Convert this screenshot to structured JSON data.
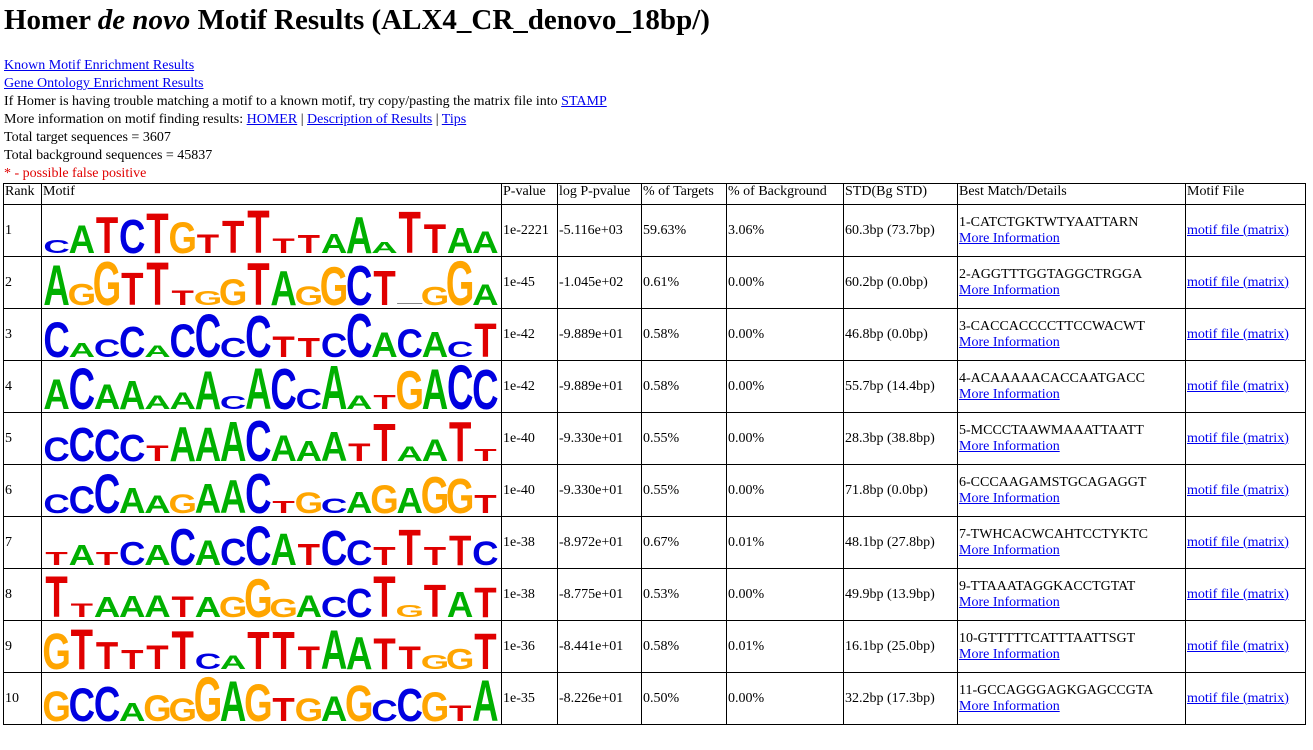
{
  "title_prefix": "Homer ",
  "title_italic": "de novo",
  "title_suffix": " Motif Results (ALX4_CR_denovo_18bp/)",
  "links": {
    "known": "Known Motif Enrichment Results",
    "go": "Gene Ontology Enrichment Results"
  },
  "stamp_text": "If Homer is having trouble matching a motif to a known motif, try copy/pasting the matrix file into ",
  "stamp_link": "STAMP",
  "more_info_text": "More information on motif finding results: ",
  "more_info_links": {
    "homer": "HOMER",
    "desc": "Description of Results",
    "tips": "Tips"
  },
  "separator": " | ",
  "total_target": "Total target sequences = 3607",
  "total_background": "Total background sequences = 45837",
  "false_positive_note": "* - possible false positive",
  "colors": {
    "A": "#00b000",
    "C": "#0000e0",
    "G": "#ffa500",
    "T": "#e00000",
    "link": "#0000ee"
  },
  "headers": {
    "rank": "Rank",
    "motif": "Motif",
    "pvalue": "P-value",
    "logp": "log P-pvalue",
    "targets": "% of Targets",
    "background": "% of Background",
    "std": "STD(Bg STD)",
    "best": "Best Match/Details",
    "file": "Motif File"
  },
  "rows": [
    {
      "rank": "1",
      "consensus": "CATCTGTTTTTAAATTAA",
      "pvalue": "1e-2221",
      "logp": "-5.116e+03",
      "targets": "59.63%",
      "background": "3.06%",
      "std": "60.3bp (73.7bp)",
      "best": "1-CATCTGKTWTYAATTARN",
      "more": "More Information",
      "file": "motif file (matrix)"
    },
    {
      "rank": "2",
      "consensus": "AGGTTTGGTAGGCT_GGA",
      "pvalue": "1e-45",
      "logp": "-1.045e+02",
      "targets": "0.61%",
      "background": "0.00%",
      "std": "60.2bp (0.0bp)",
      "best": "2-AGGTTTGGTAGGCTRGGA",
      "more": "More Information",
      "file": "motif file (matrix)"
    },
    {
      "rank": "3",
      "consensus": "CACCACCCCTTCCACACT",
      "pvalue": "1e-42",
      "logp": "-9.889e+01",
      "targets": "0.58%",
      "background": "0.00%",
      "std": "46.8bp (0.0bp)",
      "best": "3-CACCACCCCTTCCWACWT",
      "more": "More Information",
      "file": "motif file (matrix)"
    },
    {
      "rank": "4",
      "consensus": "ACAAAAACACCAATGACC",
      "pvalue": "1e-42",
      "logp": "-9.889e+01",
      "targets": "0.58%",
      "background": "0.00%",
      "std": "55.7bp (14.4bp)",
      "best": "4-ACAAAAACACCAATGACC",
      "more": "More Information",
      "file": "motif file (matrix)"
    },
    {
      "rank": "5",
      "consensus": "CCCCTAAACAAATTAATT",
      "pvalue": "1e-40",
      "logp": "-9.330e+01",
      "targets": "0.55%",
      "background": "0.00%",
      "std": "28.3bp (38.8bp)",
      "best": "5-MCCCTAAWMAAATTAATT",
      "more": "More Information",
      "file": "motif file (matrix)"
    },
    {
      "rank": "6",
      "consensus": "CCCAAGAACTGCAGAGGT",
      "pvalue": "1e-40",
      "logp": "-9.330e+01",
      "targets": "0.55%",
      "background": "0.00%",
      "std": "71.8bp (0.0bp)",
      "best": "6-CCCAAGAMSTGCAGAGGT",
      "more": "More Information",
      "file": "motif file (matrix)"
    },
    {
      "rank": "7",
      "consensus": "TATCACACCATCCTTTTC",
      "pvalue": "1e-38",
      "logp": "-8.972e+01",
      "targets": "0.67%",
      "background": "0.01%",
      "std": "48.1bp (27.8bp)",
      "best": "7-TWHCACWCAHTCCTYKTC",
      "more": "More Information",
      "file": "motif file (matrix)"
    },
    {
      "rank": "8",
      "consensus": "TTAAATAGGGACCTGTAT",
      "pvalue": "1e-38",
      "logp": "-8.775e+01",
      "targets": "0.53%",
      "background": "0.00%",
      "std": "49.9bp (13.9bp)",
      "best": "9-TTAAATAGGKACCTGTAT",
      "more": "More Information",
      "file": "motif file (matrix)"
    },
    {
      "rank": "9",
      "consensus": "GTTTTTCATTTAATTGGT",
      "pvalue": "1e-36",
      "logp": "-8.441e+01",
      "targets": "0.58%",
      "background": "0.01%",
      "std": "16.1bp (25.0bp)",
      "best": "10-GTTTTTCATTTAATTSGT",
      "more": "More Information",
      "file": "motif file (matrix)"
    },
    {
      "rank": "10",
      "consensus": "GCCAGGGAGTGAGCCGTA",
      "pvalue": "1e-35",
      "logp": "-8.226e+01",
      "targets": "0.50%",
      "background": "0.00%",
      "std": "32.2bp (17.3bp)",
      "best": "11-GCCAGGGAGKGAGCCGTA",
      "more": "More Information",
      "file": "motif file (matrix)"
    }
  ]
}
